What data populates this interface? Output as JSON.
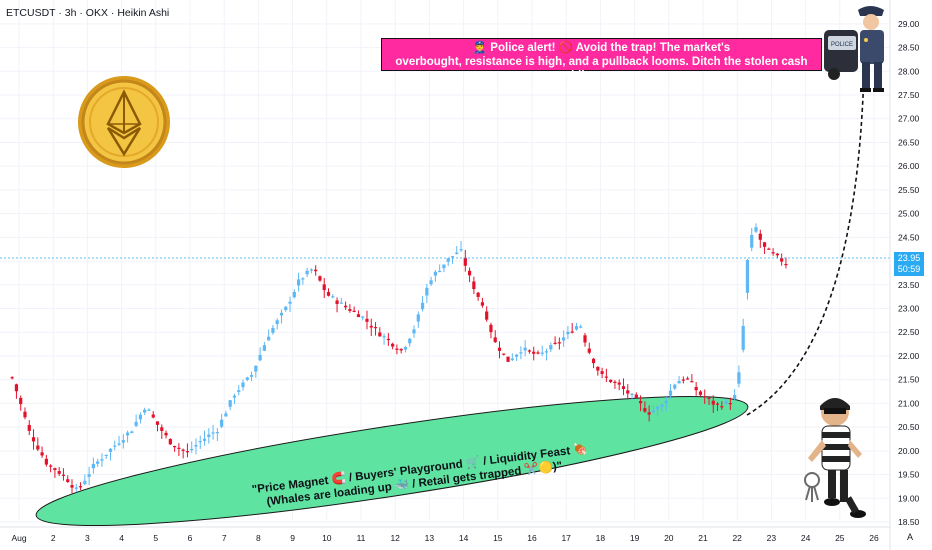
{
  "header": {
    "symbol": "ETCUSDT",
    "interval": "3h",
    "exchange": "OKX",
    "chart_style": "Heikin Ashi"
  },
  "alert": {
    "line1": "👮‍♂️ Police alert! 🚫 Avoid the trap! The market's",
    "line2": "overbought, resistance is high, and a pullback looms. Ditch the stolen cash while you can.",
    "background": "#ff2aa0"
  },
  "zone": {
    "line1": "\"Price Magnet 🧲 / Buyers' Playground 🛒 / Liquidity Feast 🍖",
    "line2": "(Whales are loading up 🐳 / Retail gets trapped ✂️🟡)\"",
    "fill": "#5fe3a1"
  },
  "price_label": {
    "price": "23.95",
    "countdown": "50:59",
    "color": "#2aaaf2"
  },
  "mode_label": "A",
  "icons": [
    "ethereum-coin-icon",
    "police-officer-icon",
    "thief-icon"
  ],
  "colors": {
    "up": "#5db8f5",
    "down": "#e3122b",
    "grid": "#f0f3fa"
  },
  "chart_data": {
    "type": "candlestick",
    "title": "",
    "ylim": [
      18.5,
      29.25
    ],
    "yticks": [
      "18.50",
      "19.00",
      "19.50",
      "20.00",
      "20.50",
      "21.00",
      "21.50",
      "22.00",
      "22.50",
      "23.00",
      "23.50",
      "24.00",
      "24.50",
      "25.00",
      "25.50",
      "26.00",
      "26.50",
      "27.00",
      "27.50",
      "28.00",
      "28.50",
      "29.00"
    ],
    "xticks": [
      "Aug",
      "2",
      "3",
      "4",
      "5",
      "6",
      "7",
      "8",
      "9",
      "10",
      "11",
      "12",
      "13",
      "14",
      "15",
      "16",
      "17",
      "18",
      "19",
      "20",
      "21",
      "22",
      "23",
      "24",
      "25",
      "26"
    ],
    "x_days": [
      1,
      2,
      3,
      4,
      5,
      6,
      7,
      8,
      9,
      10,
      11,
      12,
      13,
      14,
      15,
      16,
      17,
      18,
      19,
      20,
      21,
      22,
      23,
      24,
      25,
      26
    ],
    "last_price": 23.95,
    "close_path": [
      {
        "day": 0.8,
        "close": 21.55
      },
      {
        "day": 1.3,
        "close": 20.4
      },
      {
        "day": 1.8,
        "close": 19.75
      },
      {
        "day": 2.35,
        "close": 19.45
      },
      {
        "day": 2.7,
        "close": 19.15
      },
      {
        "day": 3.2,
        "close": 19.7
      },
      {
        "day": 3.7,
        "close": 20.05
      },
      {
        "day": 4.3,
        "close": 20.45
      },
      {
        "day": 4.7,
        "close": 20.95
      },
      {
        "day": 5.0,
        "close": 20.6
      },
      {
        "day": 5.4,
        "close": 20.2
      },
      {
        "day": 5.9,
        "close": 19.95
      },
      {
        "day": 6.3,
        "close": 20.2
      },
      {
        "day": 6.8,
        "close": 20.45
      },
      {
        "day": 7.3,
        "close": 21.2
      },
      {
        "day": 7.8,
        "close": 21.6
      },
      {
        "day": 8.3,
        "close": 22.45
      },
      {
        "day": 8.8,
        "close": 23.0
      },
      {
        "day": 9.2,
        "close": 23.6
      },
      {
        "day": 9.6,
        "close": 23.85
      },
      {
        "day": 10.0,
        "close": 23.3
      },
      {
        "day": 10.5,
        "close": 23.05
      },
      {
        "day": 11.0,
        "close": 22.85
      },
      {
        "day": 11.5,
        "close": 22.5
      },
      {
        "day": 12.2,
        "close": 22.1
      },
      {
        "day": 12.6,
        "close": 22.65
      },
      {
        "day": 13.0,
        "close": 23.6
      },
      {
        "day": 13.5,
        "close": 24.0
      },
      {
        "day": 13.9,
        "close": 24.25
      },
      {
        "day": 14.2,
        "close": 23.6
      },
      {
        "day": 14.6,
        "close": 23.0
      },
      {
        "day": 14.9,
        "close": 22.3
      },
      {
        "day": 15.3,
        "close": 21.9
      },
      {
        "day": 15.7,
        "close": 22.15
      },
      {
        "day": 16.2,
        "close": 22.0
      },
      {
        "day": 16.8,
        "close": 22.3
      },
      {
        "day": 17.4,
        "close": 22.7
      },
      {
        "day": 17.6,
        "close": 22.2
      },
      {
        "day": 18.0,
        "close": 21.6
      },
      {
        "day": 18.5,
        "close": 21.4
      },
      {
        "day": 19.0,
        "close": 21.1
      },
      {
        "day": 19.4,
        "close": 20.8
      },
      {
        "day": 19.8,
        "close": 20.95
      },
      {
        "day": 20.2,
        "close": 21.45
      },
      {
        "day": 20.5,
        "close": 21.55
      },
      {
        "day": 20.9,
        "close": 21.2
      },
      {
        "day": 21.4,
        "close": 20.95
      },
      {
        "day": 21.9,
        "close": 21.05
      },
      {
        "day": 22.1,
        "close": 21.8
      },
      {
        "day": 22.3,
        "close": 24.0
      },
      {
        "day": 22.5,
        "close": 24.8
      },
      {
        "day": 22.75,
        "close": 24.3
      },
      {
        "day": 23.1,
        "close": 24.1
      },
      {
        "day": 23.45,
        "close": 23.95
      }
    ]
  }
}
